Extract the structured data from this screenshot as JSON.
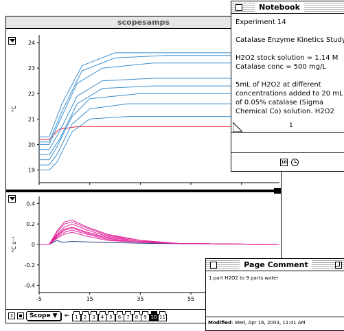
{
  "scope_window": {
    "title": "scopesamps",
    "top_chart_unit": "°C",
    "bottom_chart_unit": "°C s⁻¹",
    "x_axis_label": "s",
    "scope_button": "Scope ▼",
    "page_tabs": [
      "1",
      "2",
      "3",
      "4",
      "5",
      "6",
      "7",
      "8",
      "9",
      "10",
      "11"
    ],
    "active_tab": "10"
  },
  "notebook": {
    "title": "Notebook",
    "lines": [
      "Experiment 14",
      "",
      "Catalase Enzyme Kinetics Study",
      "",
      "H2O2 stock solution = 1.14 M",
      "Catalase conc = 500 mg/L",
      "",
      "5mL of H2O2 at different",
      "concentrations added to 20 mL",
      "of 0.05% catalase (Sigma",
      "Chemical Co) solution. H2O2"
    ],
    "page_number": "1",
    "calendar_icon_label": "10"
  },
  "page_comment": {
    "title": "Page Comment",
    "text": "1 part H2O2 to 9 parts water",
    "modified_label": "Modified",
    "modified_value": ": Wed, Apr 16, 2003, 11:41 AM"
  },
  "colors": {
    "temperature": "#3b8fd0",
    "rate": "#e0259a",
    "baseline": "#e8203a",
    "dark_series": "#2a3d8a"
  },
  "chart_data": [
    {
      "type": "line",
      "ylabel": "°C",
      "xlim": [
        -5,
        90
      ],
      "ylim": [
        18.5,
        24.3
      ],
      "y_ticks": [
        19,
        20,
        21,
        22,
        23,
        24
      ],
      "x_ticks": [
        -5,
        15,
        35,
        55,
        75
      ],
      "series": [
        {
          "values": [
            [
              -5,
              20.2
            ],
            [
              -1,
              20.2
            ],
            [
              3,
              20.6
            ],
            [
              10,
              20.7
            ],
            [
              90,
              20.7
            ]
          ]
        },
        {
          "values": [
            [
              -5,
              19.0
            ],
            [
              -1,
              19.0
            ],
            [
              2,
              19.3
            ],
            [
              8,
              20.5
            ],
            [
              15,
              21.0
            ],
            [
              30,
              21.1
            ],
            [
              90,
              21.1
            ]
          ]
        },
        {
          "values": [
            [
              -5,
              19.2
            ],
            [
              -1,
              19.2
            ],
            [
              2,
              19.6
            ],
            [
              8,
              20.8
            ],
            [
              15,
              21.4
            ],
            [
              30,
              21.6
            ],
            [
              90,
              21.6
            ]
          ]
        },
        {
          "values": [
            [
              -5,
              19.4
            ],
            [
              -1,
              19.4
            ],
            [
              2,
              19.9
            ],
            [
              8,
              21.1
            ],
            [
              15,
              21.8
            ],
            [
              35,
              22.0
            ],
            [
              90,
              22.0
            ]
          ]
        },
        {
          "values": [
            [
              -5,
              19.6
            ],
            [
              -1,
              19.6
            ],
            [
              3,
              20.2
            ],
            [
              10,
              21.6
            ],
            [
              20,
              22.2
            ],
            [
              40,
              22.3
            ],
            [
              90,
              22.3
            ]
          ]
        },
        {
          "values": [
            [
              -5,
              19.8
            ],
            [
              -1,
              19.8
            ],
            [
              3,
              20.5
            ],
            [
              10,
              21.9
            ],
            [
              20,
              22.5
            ],
            [
              40,
              22.6
            ],
            [
              90,
              22.6
            ]
          ]
        },
        {
          "values": [
            [
              -5,
              20.0
            ],
            [
              -1,
              20.0
            ],
            [
              3,
              20.9
            ],
            [
              10,
              22.4
            ],
            [
              20,
              23.0
            ],
            [
              40,
              23.2
            ],
            [
              90,
              23.2
            ]
          ]
        },
        {
          "values": [
            [
              -5,
              20.1
            ],
            [
              -1,
              20.1
            ],
            [
              4,
              21.3
            ],
            [
              12,
              22.9
            ],
            [
              25,
              23.4
            ],
            [
              45,
              23.5
            ],
            [
              90,
              23.5
            ]
          ]
        },
        {
          "values": [
            [
              -5,
              20.3
            ],
            [
              -1,
              20.3
            ],
            [
              4,
              21.6
            ],
            [
              12,
              23.1
            ],
            [
              25,
              23.6
            ],
            [
              90,
              23.6
            ]
          ]
        }
      ]
    },
    {
      "type": "line",
      "ylabel": "°C s⁻¹",
      "xlabel": "s",
      "xlim": [
        -5,
        90
      ],
      "ylim": [
        -0.47,
        0.47
      ],
      "y_ticks": [
        -0.4,
        -0.2,
        0,
        0.2,
        0.4
      ],
      "x_ticks": [
        -5,
        15,
        35,
        55,
        75
      ],
      "series": [
        {
          "values": [
            [
              -5,
              0.0
            ],
            [
              -1,
              0.0
            ],
            [
              2,
              0.04
            ],
            [
              4,
              0.02
            ],
            [
              8,
              0.03
            ],
            [
              20,
              0.02
            ],
            [
              40,
              0.01
            ],
            [
              90,
              0.0
            ]
          ]
        },
        {
          "values": [
            [
              -5,
              0.0
            ],
            [
              -1,
              0.0
            ],
            [
              2,
              0.06
            ],
            [
              5,
              0.1
            ],
            [
              8,
              0.12
            ],
            [
              14,
              0.08
            ],
            [
              22,
              0.04
            ],
            [
              35,
              0.02
            ],
            [
              50,
              0.01
            ],
            [
              90,
              0.0
            ]
          ]
        },
        {
          "values": [
            [
              -5,
              0.0
            ],
            [
              -1,
              0.0
            ],
            [
              2,
              0.07
            ],
            [
              5,
              0.12
            ],
            [
              8,
              0.14
            ],
            [
              14,
              0.1
            ],
            [
              22,
              0.05
            ],
            [
              35,
              0.02
            ],
            [
              50,
              0.01
            ],
            [
              90,
              0.0
            ]
          ]
        },
        {
          "values": [
            [
              -5,
              0.0
            ],
            [
              -1,
              0.0
            ],
            [
              2,
              0.08
            ],
            [
              5,
              0.14
            ],
            [
              8,
              0.16
            ],
            [
              14,
              0.11
            ],
            [
              22,
              0.06
            ],
            [
              35,
              0.02
            ],
            [
              50,
              0.01
            ],
            [
              90,
              0.0
            ]
          ]
        },
        {
          "values": [
            [
              -5,
              0.0
            ],
            [
              -1,
              0.0
            ],
            [
              2,
              0.09
            ],
            [
              5,
              0.15
            ],
            [
              8,
              0.17
            ],
            [
              14,
              0.12
            ],
            [
              22,
              0.07
            ],
            [
              35,
              0.03
            ],
            [
              50,
              0.01
            ],
            [
              90,
              0.0
            ]
          ]
        },
        {
          "values": [
            [
              -5,
              0.0
            ],
            [
              -1,
              0.0
            ],
            [
              2,
              0.1
            ],
            [
              5,
              0.17
            ],
            [
              8,
              0.2
            ],
            [
              14,
              0.14
            ],
            [
              22,
              0.08
            ],
            [
              35,
              0.03
            ],
            [
              50,
              0.01
            ],
            [
              90,
              0.0
            ]
          ]
        },
        {
          "values": [
            [
              -5,
              0.0
            ],
            [
              -1,
              0.0
            ],
            [
              2,
              0.12
            ],
            [
              5,
              0.2
            ],
            [
              8,
              0.22
            ],
            [
              14,
              0.16
            ],
            [
              22,
              0.09
            ],
            [
              35,
              0.04
            ],
            [
              50,
              0.01
            ],
            [
              90,
              0.0
            ]
          ]
        },
        {
          "values": [
            [
              -5,
              0.0
            ],
            [
              -1,
              0.0
            ],
            [
              2,
              0.13
            ],
            [
              5,
              0.22
            ],
            [
              8,
              0.24
            ],
            [
              14,
              0.17
            ],
            [
              22,
              0.1
            ],
            [
              35,
              0.04
            ],
            [
              50,
              0.01
            ],
            [
              90,
              0.0
            ]
          ]
        }
      ]
    }
  ]
}
